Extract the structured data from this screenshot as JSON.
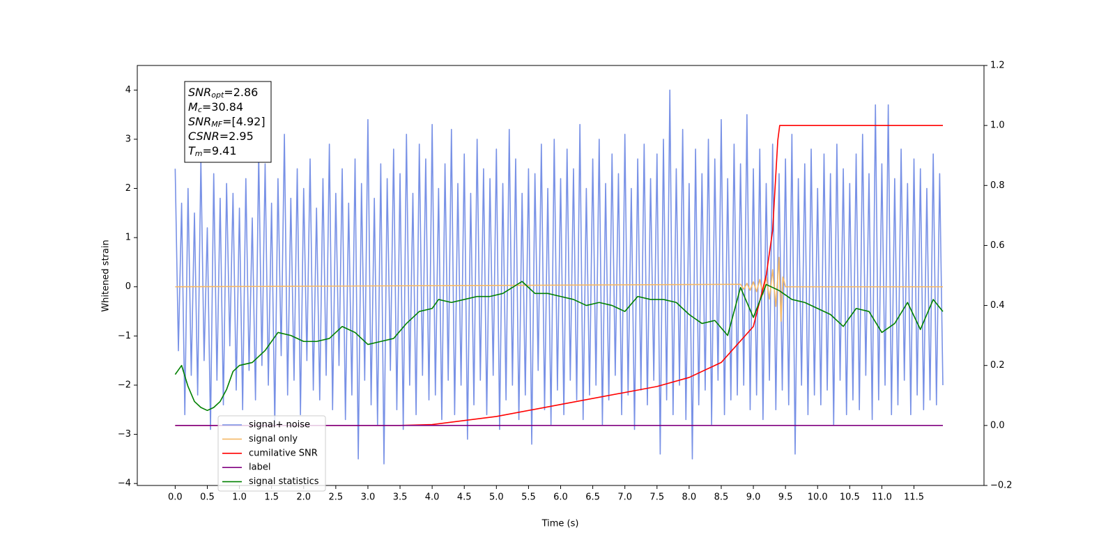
{
  "chart_data": {
    "type": "line",
    "xlabel": "Time (s)",
    "ylabel": "Whitened strain",
    "xlim": [
      -0.59,
      12.59
    ],
    "ylim": [
      -4.04,
      4.5
    ],
    "y2lim": [
      -0.2,
      1.2
    ],
    "xticks": [
      {
        "value": 0,
        "label": "0.0"
      },
      0.5,
      {
        "value": 1,
        "label": "1.0"
      },
      1.5,
      {
        "value": 2,
        "label": "2.0"
      },
      2.5,
      {
        "value": 3,
        "label": "3.0"
      },
      3.5,
      {
        "value": 4,
        "label": "4.0"
      },
      4.5,
      {
        "value": 5,
        "label": "5.0"
      },
      5.5,
      {
        "value": 6,
        "label": "6.0"
      },
      6.5,
      {
        "value": 7,
        "label": "7.0"
      },
      7.5,
      {
        "value": 8,
        "label": "8.0"
      },
      8.5,
      {
        "value": 9,
        "label": "9.0"
      },
      9.5,
      {
        "value": 10,
        "label": "10.0"
      },
      10.5,
      {
        "value": 11,
        "label": "11.0"
      },
      11.5
    ],
    "yticks": [
      {
        "value": -4,
        "label": "−4"
      },
      {
        "value": -3,
        "label": "−3"
      },
      {
        "value": -2,
        "label": "−2"
      },
      {
        "value": -1,
        "label": "−1"
      },
      0,
      1,
      2,
      3,
      4
    ],
    "y2ticks": [
      {
        "value": -0.2,
        "label": "−0.2"
      },
      {
        "value": 0,
        "label": "0.0"
      },
      0.2,
      0.4,
      0.6,
      0.8,
      {
        "value": 1,
        "label": "1.0"
      },
      1.2
    ],
    "legend": "lower left",
    "annotation": [
      {
        "base": "SNR",
        "sub": "opt",
        "rest": "=2.86"
      },
      {
        "base": "M",
        "sub": "c",
        "rest": "=30.84"
      },
      {
        "base": "SNR",
        "sub": "MF",
        "rest": "=[4.92]"
      },
      {
        "base": "CSNR",
        "sub": "",
        "rest": "=2.95"
      },
      {
        "base": "T",
        "sub": "m",
        "rest": "=9.41"
      }
    ],
    "series": [
      {
        "name": "signal+ noise",
        "color": "#7891e6",
        "axis": "y",
        "x": [
          0,
          0.05,
          0.1,
          0.15,
          0.2,
          0.25,
          0.3,
          0.35,
          0.4,
          0.45,
          0.5,
          0.55,
          0.6,
          0.65,
          0.7,
          0.75,
          0.8,
          0.85,
          0.9,
          0.95,
          1,
          1.05,
          1.1,
          1.15,
          1.2,
          1.25,
          1.3,
          1.35,
          1.4,
          1.45,
          1.5,
          1.55,
          1.6,
          1.65,
          1.7,
          1.75,
          1.8,
          1.85,
          1.9,
          1.95,
          2,
          2.05,
          2.1,
          2.15,
          2.2,
          2.25,
          2.3,
          2.35,
          2.4,
          2.45,
          2.5,
          2.55,
          2.6,
          2.65,
          2.7,
          2.75,
          2.8,
          2.85,
          2.9,
          2.95,
          3,
          3.05,
          3.1,
          3.15,
          3.2,
          3.25,
          3.3,
          3.35,
          3.4,
          3.45,
          3.5,
          3.55,
          3.6,
          3.65,
          3.7,
          3.75,
          3.8,
          3.85,
          3.9,
          3.95,
          4,
          4.05,
          4.1,
          4.15,
          4.2,
          4.25,
          4.3,
          4.35,
          4.4,
          4.45,
          4.5,
          4.55,
          4.6,
          4.65,
          4.7,
          4.75,
          4.8,
          4.85,
          4.9,
          4.95,
          5,
          5.05,
          5.1,
          5.15,
          5.2,
          5.25,
          5.3,
          5.35,
          5.4,
          5.45,
          5.5,
          5.55,
          5.6,
          5.65,
          5.7,
          5.75,
          5.8,
          5.85,
          5.9,
          5.95,
          6,
          6.05,
          6.1,
          6.15,
          6.2,
          6.25,
          6.3,
          6.35,
          6.4,
          6.45,
          6.5,
          6.55,
          6.6,
          6.65,
          6.7,
          6.75,
          6.8,
          6.85,
          6.9,
          6.95,
          7,
          7.05,
          7.1,
          7.15,
          7.2,
          7.25,
          7.3,
          7.35,
          7.4,
          7.45,
          7.5,
          7.55,
          7.6,
          7.65,
          7.7,
          7.75,
          7.8,
          7.85,
          7.9,
          7.95,
          8,
          8.05,
          8.1,
          8.15,
          8.2,
          8.25,
          8.3,
          8.35,
          8.4,
          8.45,
          8.5,
          8.55,
          8.6,
          8.65,
          8.7,
          8.75,
          8.8,
          8.85,
          8.9,
          8.95,
          9,
          9.05,
          9.1,
          9.15,
          9.2,
          9.25,
          9.3,
          9.35,
          9.4,
          9.45,
          9.5,
          9.55,
          9.6,
          9.65,
          9.7,
          9.75,
          9.8,
          9.85,
          9.9,
          9.95,
          10,
          10.05,
          10.1,
          10.15,
          10.2,
          10.25,
          10.3,
          10.35,
          10.4,
          10.45,
          10.5,
          10.55,
          10.6,
          10.65,
          10.7,
          10.75,
          10.8,
          10.85,
          10.9,
          10.95,
          11,
          11.05,
          11.1,
          11.15,
          11.2,
          11.25,
          11.3,
          11.35,
          11.4,
          11.45,
          11.5,
          11.55,
          11.6,
          11.65,
          11.7,
          11.75,
          11.8,
          11.85,
          11.9,
          11.95
        ],
        "values": [
          2.4,
          -1.3,
          1.7,
          -2.6,
          2.0,
          -1.8,
          1.5,
          -2.2,
          2.6,
          -1.5,
          1.2,
          -2.9,
          2.3,
          -1.9,
          1.8,
          -2.4,
          2.1,
          -1.2,
          1.9,
          -2.1,
          1.6,
          -2.5,
          2.2,
          -1.7,
          1.4,
          -2.3,
          2.7,
          -1.6,
          2.5,
          -2.0,
          1.7,
          -2.8,
          2.2,
          -1.4,
          3.1,
          -2.2,
          1.8,
          -1.9,
          2.4,
          -2.6,
          2.0,
          -1.5,
          2.6,
          -2.1,
          1.6,
          -2.3,
          2.2,
          -1.8,
          2.9,
          -2.5,
          1.9,
          -1.6,
          2.4,
          -2.7,
          1.7,
          -2.2,
          2.6,
          -3.5,
          2.1,
          -1.9,
          3.4,
          -2.4,
          1.8,
          -2.8,
          2.5,
          -3.6,
          2.2,
          -1.7,
          2.8,
          -2.5,
          2.3,
          -2.9,
          3.1,
          -2.0,
          1.9,
          -2.6,
          2.9,
          -1.8,
          2.6,
          -2.3,
          3.3,
          -2.2,
          2.0,
          -2.7,
          2.5,
          -1.9,
          3.2,
          -2.6,
          2.1,
          -2.0,
          2.7,
          -3.1,
          1.9,
          -2.4,
          3.0,
          -1.9,
          2.4,
          -2.6,
          2.2,
          -1.8,
          2.8,
          -2.9,
          2.1,
          -2.3,
          3.2,
          -2.0,
          2.6,
          -2.7,
          1.9,
          -2.2,
          2.4,
          -3.2,
          2.3,
          -1.7,
          2.9,
          -2.5,
          2.0,
          -2.8,
          3.0,
          -2.1,
          2.2,
          -2.6,
          2.8,
          -1.9,
          2.4,
          -2.3,
          3.3,
          -2.7,
          2.0,
          -2.2,
          2.6,
          -2.0,
          3.0,
          -2.8,
          2.1,
          -2.3,
          2.7,
          -1.8,
          2.3,
          -2.6,
          3.1,
          -2.2,
          2.0,
          -2.9,
          2.6,
          -2.1,
          2.9,
          -2.4,
          2.2,
          -1.9,
          2.7,
          -3.4,
          3.0,
          -2.3,
          4.0,
          -2.6,
          2.4,
          -2.0,
          3.2,
          -2.7,
          2.1,
          -3.5,
          2.8,
          -2.4,
          2.3,
          -2.1,
          3.0,
          -2.8,
          2.6,
          -1.9,
          3.4,
          -2.6,
          2.2,
          -2.3,
          2.9,
          -2.2,
          2.5,
          -2.0,
          3.5,
          -2.5,
          2.4,
          -2.2,
          2.8,
          -2.7,
          2.1,
          -1.9,
          2.9,
          -2.5,
          2.3,
          -2.1,
          2.6,
          -2.4,
          3.1,
          -3.4,
          2.2,
          -2.0,
          2.5,
          -2.6,
          2.8,
          -2.2,
          2.0,
          -2.4,
          2.7,
          -2.1,
          2.3,
          -2.8,
          2.9,
          -1.9,
          2.4,
          -2.6,
          2.1,
          -2.3,
          2.7,
          -2.5,
          3.1,
          -1.8,
          2.3,
          -2.7,
          3.7,
          -2.3,
          2.5,
          -2.0,
          3.7,
          -2.6,
          2.2,
          -2.4,
          2.8,
          -1.9,
          2.1,
          -2.6,
          2.6,
          -2.2,
          2.4,
          -2.5,
          2.0,
          -2.3,
          2.7,
          -2.4,
          2.3,
          -2.0
        ]
      },
      {
        "name": "signal only",
        "color": "#f5b865",
        "axis": "y",
        "x": [
          0,
          8.8,
          8.85,
          8.9,
          8.95,
          9,
          9.05,
          9.1,
          9.15,
          9.2,
          9.25,
          9.3,
          9.35,
          9.4,
          9.43,
          9.46,
          9.5,
          11.95
        ],
        "values": [
          0,
          0.05,
          -0.05,
          0.07,
          -0.07,
          0.1,
          -0.1,
          0.15,
          -0.15,
          0.2,
          -0.25,
          0.35,
          -0.4,
          0.6,
          -0.7,
          0.2,
          0,
          0
        ]
      },
      {
        "name": "cumilative SNR",
        "color": "#ff0000",
        "axis": "y2",
        "x": [
          0,
          3.5,
          4,
          5,
          6,
          7,
          7.5,
          8,
          8.5,
          9,
          9.2,
          9.3,
          9.38,
          9.41,
          11.95
        ],
        "values": [
          0,
          0,
          0.003,
          0.03,
          0.07,
          0.11,
          0.13,
          0.16,
          0.21,
          0.33,
          0.5,
          0.65,
          0.95,
          1,
          1
        ]
      },
      {
        "name": "label",
        "color": "#800080",
        "axis": "y2",
        "x": [
          0,
          11.95
        ],
        "values": [
          0,
          0
        ]
      },
      {
        "name": "signal statistics",
        "color": "#008000",
        "axis": "y2",
        "x": [
          0,
          0.1,
          0.2,
          0.3,
          0.4,
          0.5,
          0.6,
          0.7,
          0.8,
          0.9,
          1,
          1.2,
          1.4,
          1.6,
          1.8,
          2,
          2.2,
          2.4,
          2.6,
          2.8,
          3,
          3.2,
          3.4,
          3.6,
          3.8,
          4,
          4.1,
          4.3,
          4.5,
          4.7,
          4.9,
          5.1,
          5.4,
          5.6,
          5.8,
          6,
          6.2,
          6.4,
          6.6,
          6.8,
          7,
          7.2,
          7.4,
          7.6,
          7.8,
          8,
          8.2,
          8.4,
          8.6,
          8.8,
          9,
          9.2,
          9.4,
          9.6,
          9.8,
          10,
          10.2,
          10.4,
          10.6,
          10.8,
          11,
          11.2,
          11.4,
          11.6,
          11.8,
          11.95
        ],
        "values": [
          0.17,
          0.2,
          0.13,
          0.08,
          0.06,
          0.05,
          0.06,
          0.08,
          0.12,
          0.18,
          0.2,
          0.21,
          0.25,
          0.31,
          0.3,
          0.28,
          0.28,
          0.29,
          0.33,
          0.31,
          0.27,
          0.28,
          0.29,
          0.34,
          0.38,
          0.39,
          0.42,
          0.41,
          0.42,
          0.43,
          0.43,
          0.44,
          0.48,
          0.44,
          0.44,
          0.43,
          0.42,
          0.4,
          0.41,
          0.4,
          0.38,
          0.43,
          0.42,
          0.42,
          0.41,
          0.37,
          0.34,
          0.35,
          0.3,
          0.46,
          0.36,
          0.47,
          0.45,
          0.42,
          0.41,
          0.39,
          0.37,
          0.33,
          0.39,
          0.38,
          0.31,
          0.34,
          0.41,
          0.32,
          0.42,
          0.38
        ]
      }
    ]
  }
}
